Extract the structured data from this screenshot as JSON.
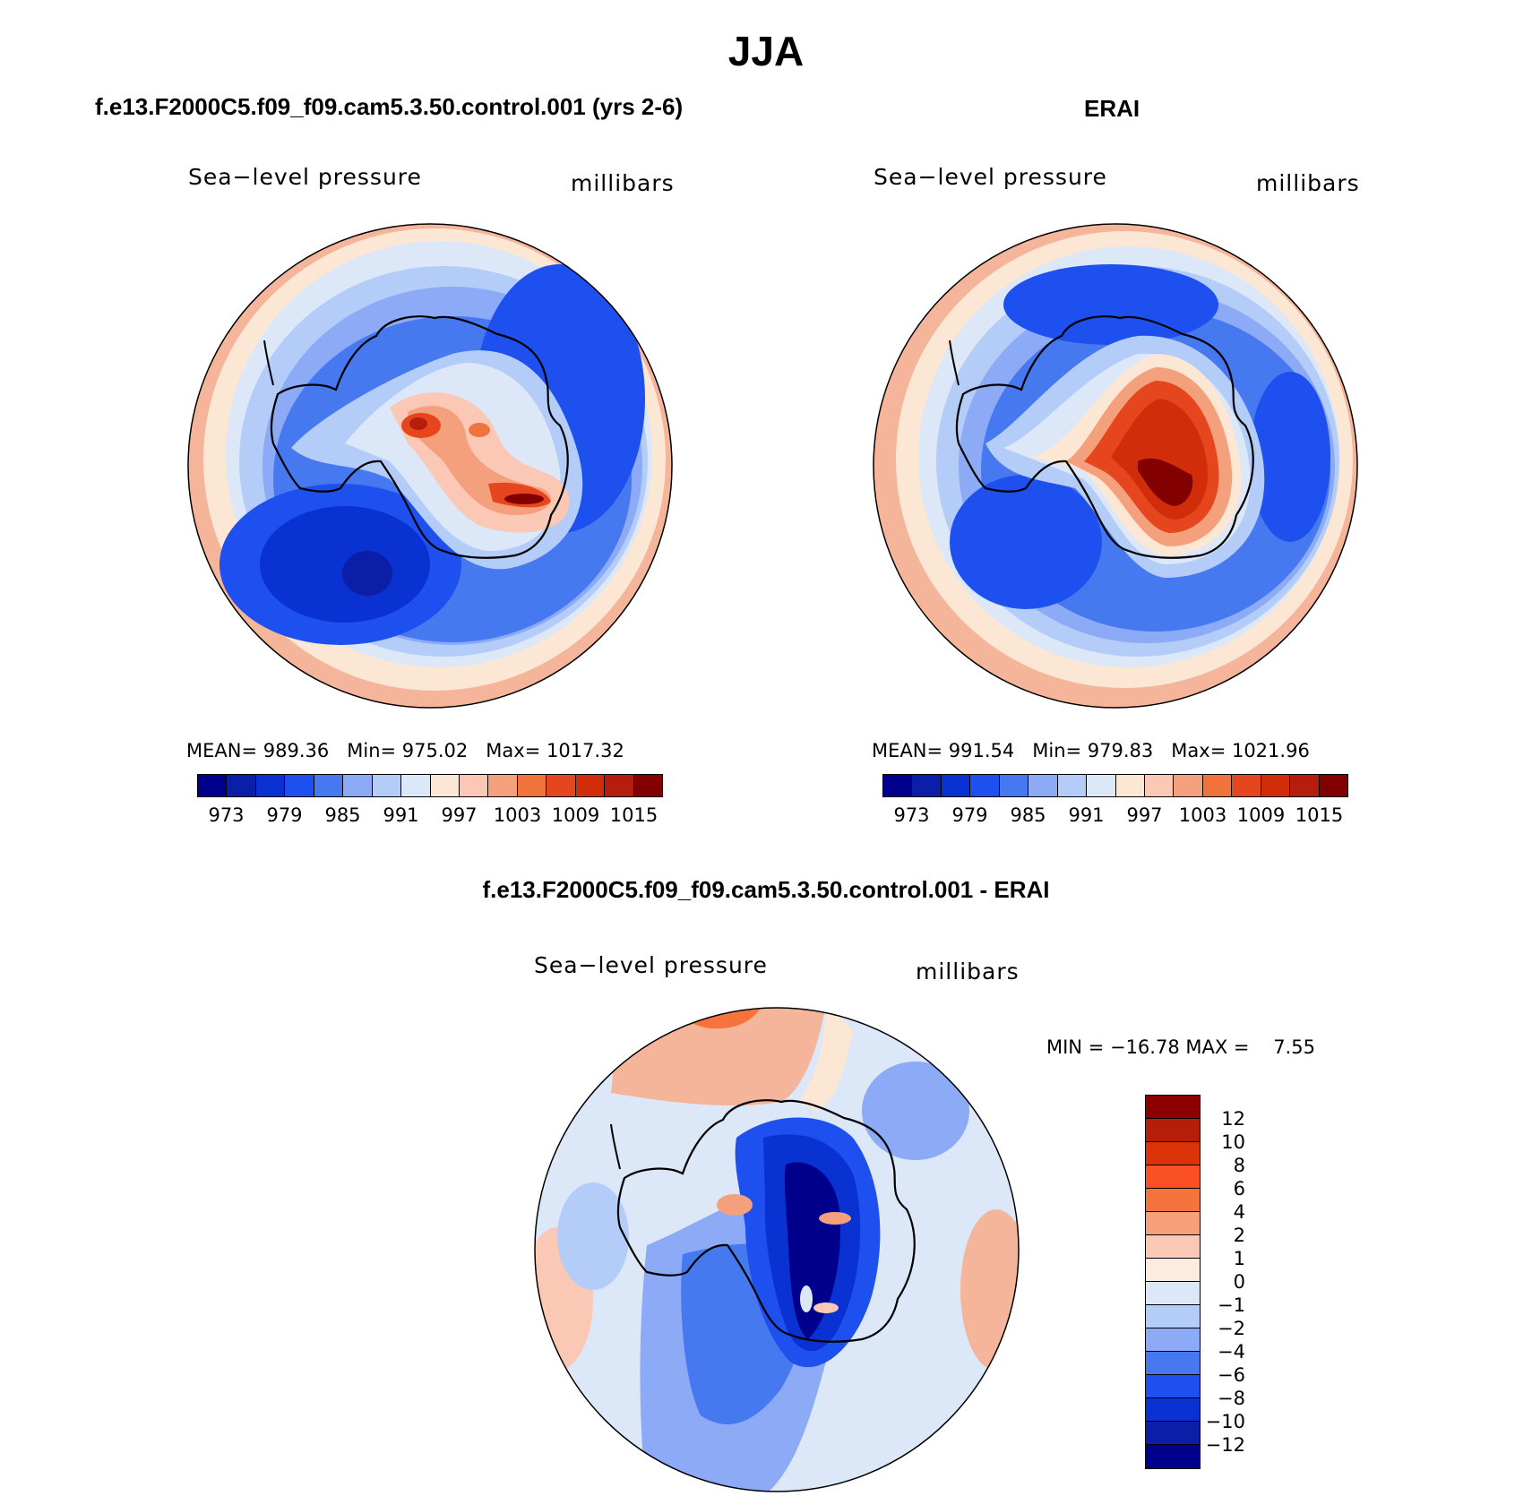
{
  "title": "JJA",
  "panels": {
    "model": {
      "title": "f.e13.F2000C5.f09_f09.cam5.3.50.control.001 (yrs 2-6)",
      "left_label": "Sea−level pressure",
      "right_label": "millibars",
      "stats": "MEAN= 989.36   Min= 975.02   Max= 1017.32"
    },
    "obs": {
      "title": "ERAI",
      "left_label": "Sea−level pressure",
      "right_label": "millibars",
      "stats": "MEAN= 991.54   Min= 979.83   Max= 1021.96"
    },
    "diff": {
      "title": "f.e13.F2000C5.f09_f09.cam5.3.50.control.001 - ERAI",
      "left_label": "Sea−level pressure",
      "right_label": "millibars",
      "stats": "MIN = −16.78 MAX =    7.55"
    }
  },
  "abs_colorbar": {
    "ticks": [
      "973",
      "979",
      "985",
      "991",
      "997",
      "1003",
      "1009",
      "1015"
    ],
    "colors": [
      "#00008c",
      "#0a1ea8",
      "#0a32d2",
      "#1e50f0",
      "#4678f0",
      "#8caaf5",
      "#b4cdf8",
      "#dce8f8",
      "#fce6d4",
      "#fac8b4",
      "#f5a07d",
      "#f0733c",
      "#e6461e",
      "#d22d0a",
      "#b41e0a",
      "#820000"
    ]
  },
  "diff_colorbar": {
    "ticks": [
      "12",
      "10",
      "8",
      "6",
      "4",
      "2",
      "1",
      "0",
      "−1",
      "−2",
      "−4",
      "−6",
      "−8",
      "−10",
      "−12"
    ],
    "colors": [
      "#8c0000",
      "#b41e0a",
      "#dc320a",
      "#fa5023",
      "#f5733c",
      "#f5a078",
      "#fac8b4",
      "#fdebe0",
      "#dce8f8",
      "#b4cdf8",
      "#8caaf5",
      "#4678f0",
      "#1e50f0",
      "#0a32d2",
      "#0a1ea8",
      "#00008c"
    ]
  }
}
